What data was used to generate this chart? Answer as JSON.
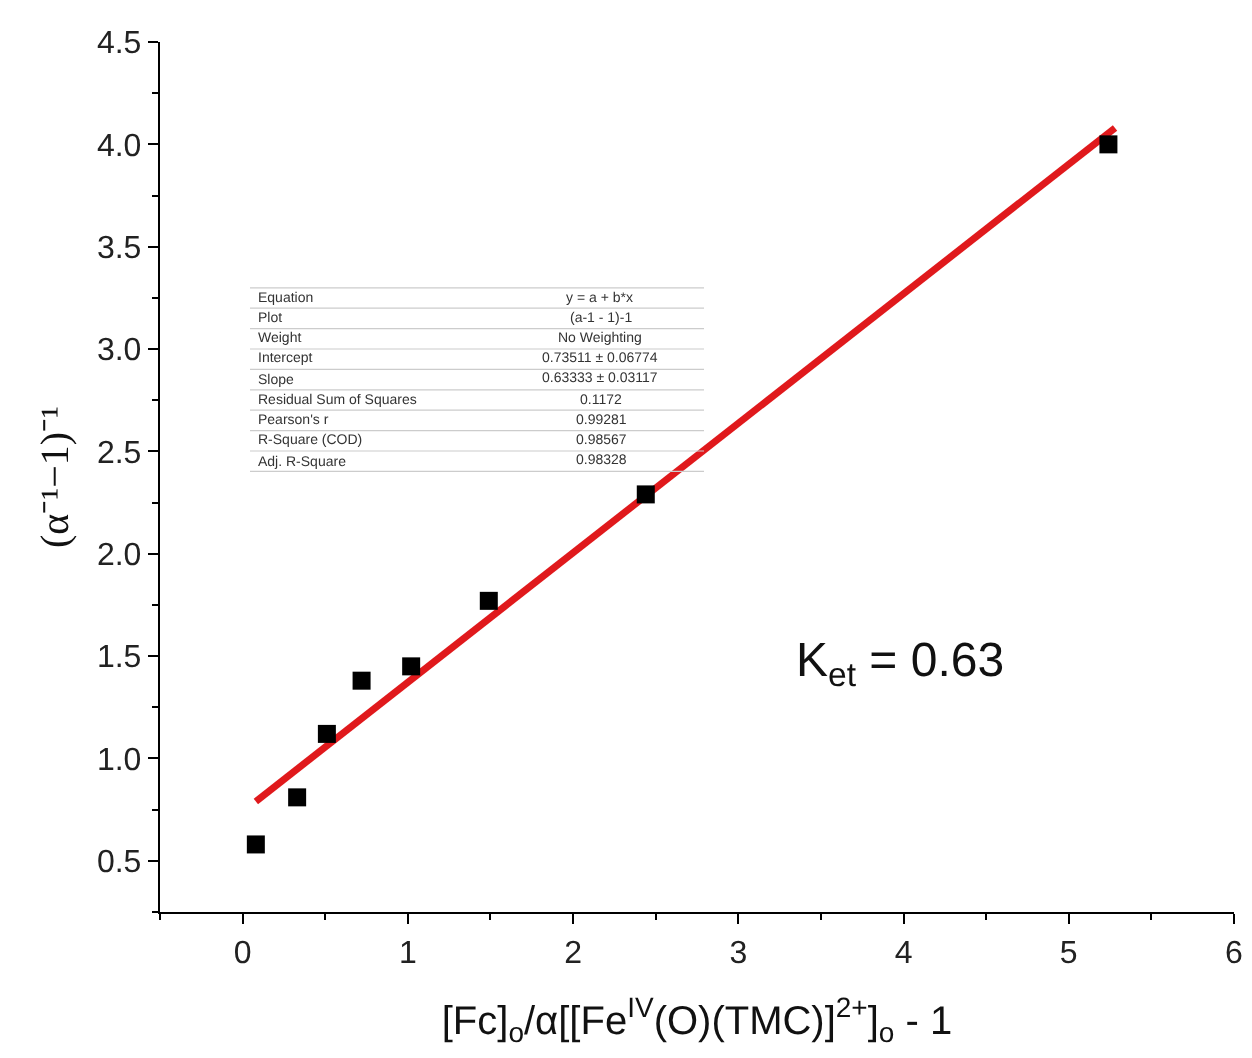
{
  "chart_data": {
    "type": "scatter",
    "xlabel": "[Fc]$_{o}$/α[[Fe$^{IV}$(O)(TMC)]$^{2+}$]$_{o}$ - 1",
    "ylabel": "(α⁻¹−1)⁻¹",
    "xlim": [
      -0.5,
      6
    ],
    "xticks": [
      0,
      1,
      2,
      3,
      4,
      5,
      6
    ],
    "ylim": [
      0.25,
      4.5
    ],
    "yticks": [
      0.5,
      {
        "value": 1,
        "label": "1.0"
      },
      1.5,
      {
        "value": 2,
        "label": "2.0"
      },
      2.5,
      {
        "value": 3,
        "label": "3.0"
      },
      3.5,
      {
        "value": 4,
        "label": "4.0"
      },
      4.5
    ],
    "grid": false,
    "series": [
      {
        "type": "scatter",
        "color": "#000000",
        "marker": "square",
        "x": [
          0.08,
          0.33,
          0.51,
          0.72,
          1.02,
          1.49,
          2.44,
          5.24
        ],
        "values": [
          0.58,
          0.81,
          1.12,
          1.38,
          1.45,
          1.77,
          2.29,
          4.0
        ]
      },
      {
        "type": "line",
        "color": "#e0191c",
        "marker": "none",
        "line_style": "solid",
        "x": [
          0.08,
          5.28
        ],
        "values": [
          0.79,
          4.08
        ]
      }
    ],
    "annotations": [
      "Equation",
      "y = a + b*x",
      "Plot",
      "(a-1 - 1)-1",
      "Weight",
      "No Weighting",
      "Intercept",
      "0.73511 ± 0.06774",
      "Slope",
      "0.63333 ± 0.03117",
      "Residual Sum of Squares",
      "0.1172",
      "Pearson's r",
      "0.99281",
      "R-Square (COD)",
      "0.98567",
      "Adj. R-Square",
      "0.98328",
      "K$_{et}$ = 0.63"
    ]
  }
}
